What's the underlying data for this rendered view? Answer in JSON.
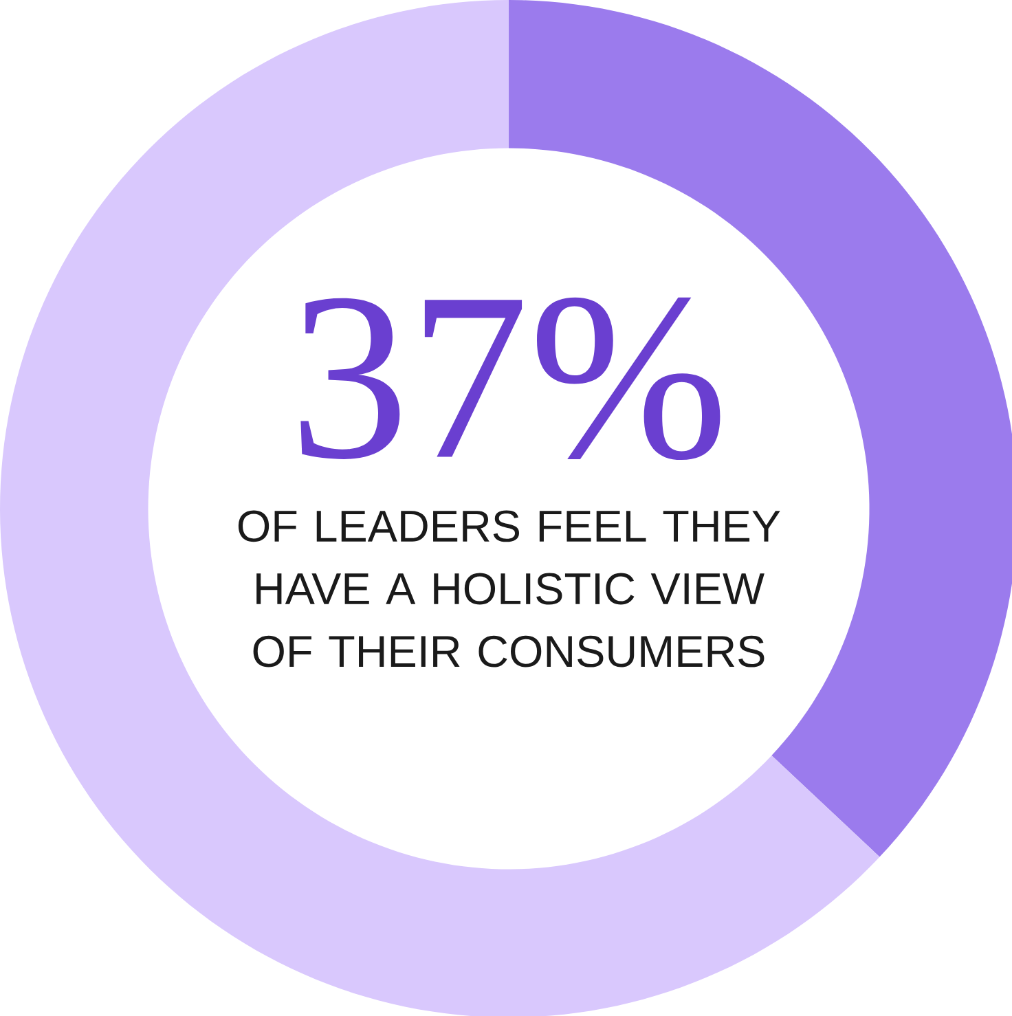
{
  "chart_data": {
    "type": "donut",
    "categories": [
      null,
      null
    ],
    "values": [
      37,
      63
    ],
    "colors": [
      "#9b7bed",
      "#d9c8fd"
    ],
    "annotations": [
      "37%",
      "OF LEADERS FEEL THEY HAVE A HOLISTIC VIEW OF THEIR CONSUMERS"
    ]
  }
}
